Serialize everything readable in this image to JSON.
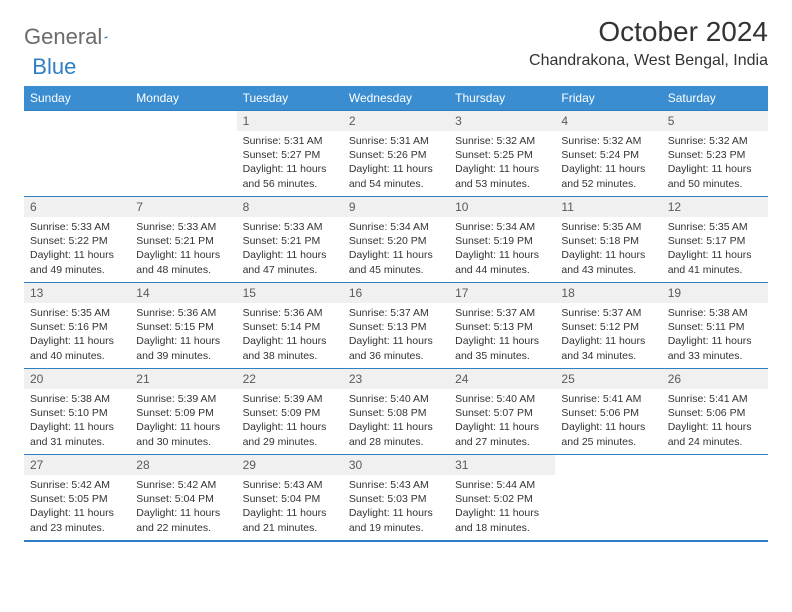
{
  "logo": {
    "general": "General",
    "blue": "Blue"
  },
  "title": "October 2024",
  "location": "Chandrakona, West Bengal, India",
  "colors": {
    "header_bg": "#3a8dd0",
    "border": "#2f7fc2",
    "daynum_bg": "#f0f0f0",
    "text": "#333333",
    "logo_gray": "#6b6b6b",
    "logo_blue": "#2f7fc2"
  },
  "weekdays": [
    "Sunday",
    "Monday",
    "Tuesday",
    "Wednesday",
    "Thursday",
    "Friday",
    "Saturday"
  ],
  "weeks": [
    [
      null,
      null,
      {
        "n": "1",
        "sr": "Sunrise: 5:31 AM",
        "ss": "Sunset: 5:27 PM",
        "dl": "Daylight: 11 hours and 56 minutes."
      },
      {
        "n": "2",
        "sr": "Sunrise: 5:31 AM",
        "ss": "Sunset: 5:26 PM",
        "dl": "Daylight: 11 hours and 54 minutes."
      },
      {
        "n": "3",
        "sr": "Sunrise: 5:32 AM",
        "ss": "Sunset: 5:25 PM",
        "dl": "Daylight: 11 hours and 53 minutes."
      },
      {
        "n": "4",
        "sr": "Sunrise: 5:32 AM",
        "ss": "Sunset: 5:24 PM",
        "dl": "Daylight: 11 hours and 52 minutes."
      },
      {
        "n": "5",
        "sr": "Sunrise: 5:32 AM",
        "ss": "Sunset: 5:23 PM",
        "dl": "Daylight: 11 hours and 50 minutes."
      }
    ],
    [
      {
        "n": "6",
        "sr": "Sunrise: 5:33 AM",
        "ss": "Sunset: 5:22 PM",
        "dl": "Daylight: 11 hours and 49 minutes."
      },
      {
        "n": "7",
        "sr": "Sunrise: 5:33 AM",
        "ss": "Sunset: 5:21 PM",
        "dl": "Daylight: 11 hours and 48 minutes."
      },
      {
        "n": "8",
        "sr": "Sunrise: 5:33 AM",
        "ss": "Sunset: 5:21 PM",
        "dl": "Daylight: 11 hours and 47 minutes."
      },
      {
        "n": "9",
        "sr": "Sunrise: 5:34 AM",
        "ss": "Sunset: 5:20 PM",
        "dl": "Daylight: 11 hours and 45 minutes."
      },
      {
        "n": "10",
        "sr": "Sunrise: 5:34 AM",
        "ss": "Sunset: 5:19 PM",
        "dl": "Daylight: 11 hours and 44 minutes."
      },
      {
        "n": "11",
        "sr": "Sunrise: 5:35 AM",
        "ss": "Sunset: 5:18 PM",
        "dl": "Daylight: 11 hours and 43 minutes."
      },
      {
        "n": "12",
        "sr": "Sunrise: 5:35 AM",
        "ss": "Sunset: 5:17 PM",
        "dl": "Daylight: 11 hours and 41 minutes."
      }
    ],
    [
      {
        "n": "13",
        "sr": "Sunrise: 5:35 AM",
        "ss": "Sunset: 5:16 PM",
        "dl": "Daylight: 11 hours and 40 minutes."
      },
      {
        "n": "14",
        "sr": "Sunrise: 5:36 AM",
        "ss": "Sunset: 5:15 PM",
        "dl": "Daylight: 11 hours and 39 minutes."
      },
      {
        "n": "15",
        "sr": "Sunrise: 5:36 AM",
        "ss": "Sunset: 5:14 PM",
        "dl": "Daylight: 11 hours and 38 minutes."
      },
      {
        "n": "16",
        "sr": "Sunrise: 5:37 AM",
        "ss": "Sunset: 5:13 PM",
        "dl": "Daylight: 11 hours and 36 minutes."
      },
      {
        "n": "17",
        "sr": "Sunrise: 5:37 AM",
        "ss": "Sunset: 5:13 PM",
        "dl": "Daylight: 11 hours and 35 minutes."
      },
      {
        "n": "18",
        "sr": "Sunrise: 5:37 AM",
        "ss": "Sunset: 5:12 PM",
        "dl": "Daylight: 11 hours and 34 minutes."
      },
      {
        "n": "19",
        "sr": "Sunrise: 5:38 AM",
        "ss": "Sunset: 5:11 PM",
        "dl": "Daylight: 11 hours and 33 minutes."
      }
    ],
    [
      {
        "n": "20",
        "sr": "Sunrise: 5:38 AM",
        "ss": "Sunset: 5:10 PM",
        "dl": "Daylight: 11 hours and 31 minutes."
      },
      {
        "n": "21",
        "sr": "Sunrise: 5:39 AM",
        "ss": "Sunset: 5:09 PM",
        "dl": "Daylight: 11 hours and 30 minutes."
      },
      {
        "n": "22",
        "sr": "Sunrise: 5:39 AM",
        "ss": "Sunset: 5:09 PM",
        "dl": "Daylight: 11 hours and 29 minutes."
      },
      {
        "n": "23",
        "sr": "Sunrise: 5:40 AM",
        "ss": "Sunset: 5:08 PM",
        "dl": "Daylight: 11 hours and 28 minutes."
      },
      {
        "n": "24",
        "sr": "Sunrise: 5:40 AM",
        "ss": "Sunset: 5:07 PM",
        "dl": "Daylight: 11 hours and 27 minutes."
      },
      {
        "n": "25",
        "sr": "Sunrise: 5:41 AM",
        "ss": "Sunset: 5:06 PM",
        "dl": "Daylight: 11 hours and 25 minutes."
      },
      {
        "n": "26",
        "sr": "Sunrise: 5:41 AM",
        "ss": "Sunset: 5:06 PM",
        "dl": "Daylight: 11 hours and 24 minutes."
      }
    ],
    [
      {
        "n": "27",
        "sr": "Sunrise: 5:42 AM",
        "ss": "Sunset: 5:05 PM",
        "dl": "Daylight: 11 hours and 23 minutes."
      },
      {
        "n": "28",
        "sr": "Sunrise: 5:42 AM",
        "ss": "Sunset: 5:04 PM",
        "dl": "Daylight: 11 hours and 22 minutes."
      },
      {
        "n": "29",
        "sr": "Sunrise: 5:43 AM",
        "ss": "Sunset: 5:04 PM",
        "dl": "Daylight: 11 hours and 21 minutes."
      },
      {
        "n": "30",
        "sr": "Sunrise: 5:43 AM",
        "ss": "Sunset: 5:03 PM",
        "dl": "Daylight: 11 hours and 19 minutes."
      },
      {
        "n": "31",
        "sr": "Sunrise: 5:44 AM",
        "ss": "Sunset: 5:02 PM",
        "dl": "Daylight: 11 hours and 18 minutes."
      },
      null,
      null
    ]
  ]
}
